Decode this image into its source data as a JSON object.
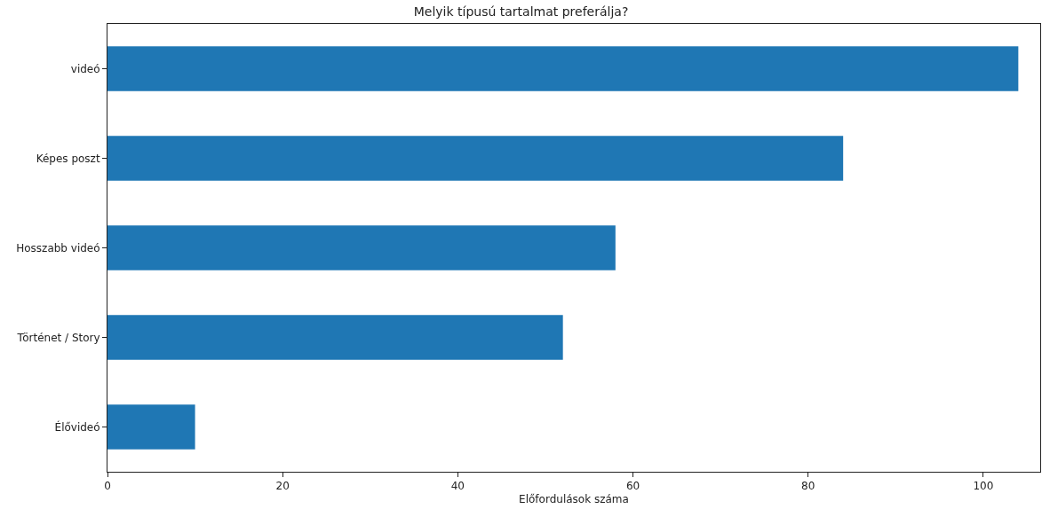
{
  "chart_data": {
    "type": "bar",
    "orientation": "horizontal",
    "title": "Melyik típusú tartalmat preferálja?",
    "xlabel": "Előfordulások száma",
    "categories": [
      "videó",
      "Képes poszt",
      "Hosszabb videó",
      "Történet / Story",
      "Élővideó"
    ],
    "values": [
      104,
      84,
      58,
      52,
      10
    ],
    "color": "#1f77b4",
    "xlim": [
      0,
      106.5
    ],
    "xticks": [
      0,
      20,
      40,
      60,
      80,
      100
    ]
  }
}
